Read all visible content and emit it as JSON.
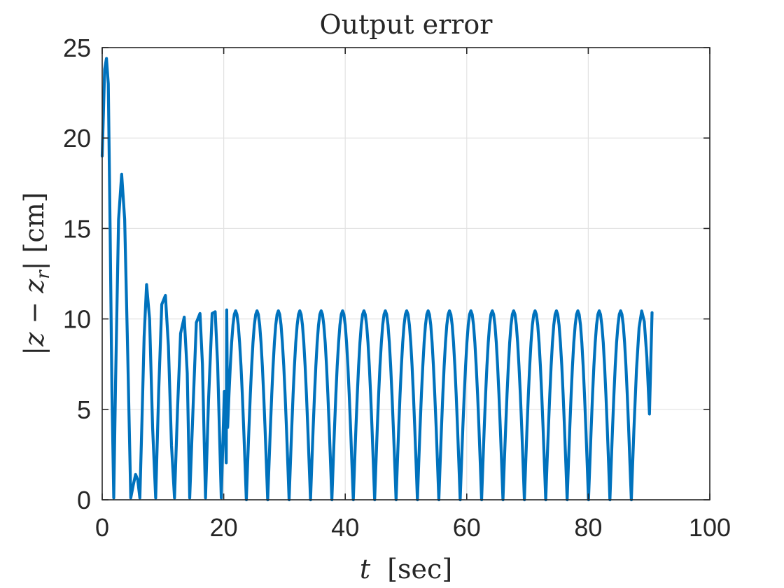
{
  "chart_data": {
    "type": "line",
    "title": "Output error",
    "xlabel": "t [sec]",
    "xlabel_var": "t",
    "xlabel_unit": "[sec]",
    "ylabel": "|z − z_r| [cm]",
    "ylabel_main": "|z − z",
    "ylabel_sub": "r",
    "ylabel_tail": "| [cm]",
    "xlim": [
      0,
      100
    ],
    "ylim": [
      0,
      25
    ],
    "xticks": [
      0,
      20,
      40,
      60,
      80,
      100
    ],
    "yticks": [
      0,
      5,
      10,
      15,
      20,
      25
    ],
    "xtick_labels": [
      "0",
      "20",
      "40",
      "60",
      "80",
      "100"
    ],
    "ytick_labels": [
      "0",
      "5",
      "10",
      "15",
      "20",
      "25"
    ],
    "grid": true,
    "line_color": "#0072BD",
    "series": [
      {
        "x": [
          0,
          0.4,
          0.7,
          1.0,
          1.3,
          1.6,
          1.9,
          2.2,
          2.7,
          3.2,
          3.7,
          4.2,
          4.7,
          5.1,
          5.5,
          5.85,
          6.2,
          6.55,
          6.9,
          7.3,
          7.8,
          8.3,
          8.8,
          9.3,
          9.8,
          10.4,
          10.9,
          11.4,
          11.9,
          12.4,
          12.9,
          13.5,
          14.0,
          14.4,
          15.0,
          15.5,
          16.1,
          16.5,
          17.0,
          17.5,
          18.1,
          18.6,
          19.0,
          19.6,
          20.1,
          20.5
        ],
        "y": [
          19.0,
          23.8,
          24.4,
          23.0,
          15.0,
          6.0,
          0.1,
          6.5,
          15.5,
          18.0,
          15.5,
          8.0,
          0.1,
          0.8,
          1.4,
          1.1,
          0.1,
          4.5,
          9.0,
          11.9,
          10.0,
          4.0,
          0.1,
          6.0,
          10.8,
          11.3,
          8.5,
          3.0,
          0.1,
          5.0,
          9.2,
          10.1,
          7.0,
          0.1,
          5.5,
          9.8,
          10.3,
          7.5,
          0.1,
          5.5,
          10.3,
          10.4,
          7.5,
          0.1,
          6.0,
          10.5
        ]
      }
    ],
    "periodic": {
      "period": 3.52,
      "zeros_start": 20.2,
      "peak_value": 10.45,
      "end_x": 90.5,
      "end_value": 10.35
    }
  }
}
